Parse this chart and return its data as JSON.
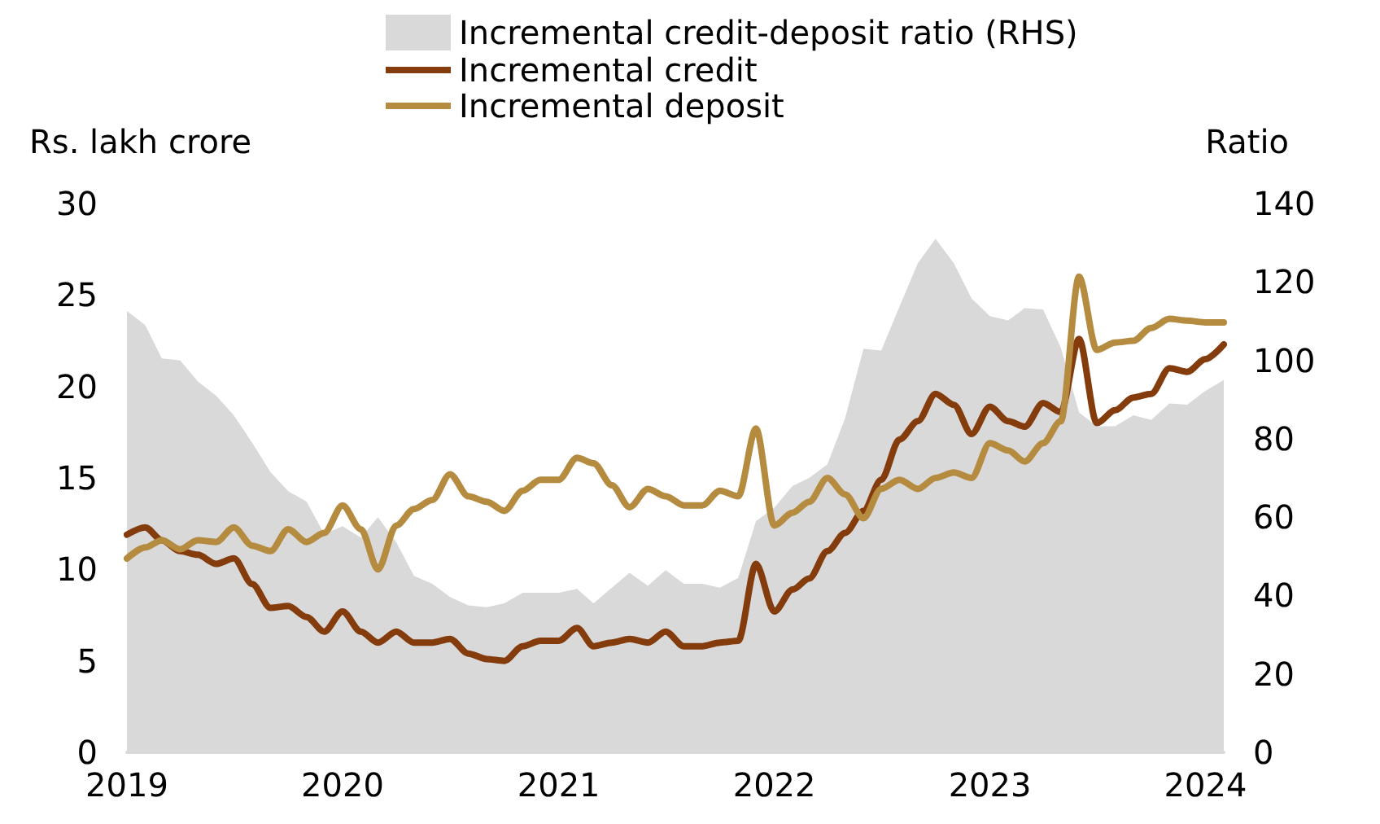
{
  "chart_data": {
    "type": "line",
    "ylabel": "Rs. lakh crore",
    "y2label": "Ratio",
    "x": [
      "2019-01",
      "2019-02",
      "2019-03",
      "2019-04",
      "2019-05",
      "2019-06",
      "2019-07",
      "2019-08",
      "2019-09",
      "2019-10",
      "2019-11",
      "2019-12",
      "2020-01",
      "2020-02",
      "2020-03",
      "2020-04",
      "2020-05",
      "2020-06",
      "2020-07",
      "2020-08",
      "2020-09",
      "2020-10",
      "2020-11",
      "2020-12",
      "2021-01",
      "2021-02",
      "2021-03",
      "2021-04",
      "2021-05",
      "2021-06",
      "2021-07",
      "2021-08",
      "2021-09",
      "2021-10",
      "2021-11",
      "2021-12",
      "2022-01",
      "2022-02",
      "2022-03",
      "2022-04",
      "2022-05",
      "2022-06",
      "2022-07",
      "2022-08",
      "2022-09",
      "2022-10",
      "2022-11",
      "2022-12",
      "2023-01",
      "2023-02",
      "2023-03",
      "2023-04",
      "2023-05",
      "2023-06",
      "2023-07",
      "2023-08",
      "2023-09",
      "2023-10",
      "2023-11",
      "2023-12",
      "2024-01",
      "2024-02"
    ],
    "series": [
      {
        "name": "Incremental credit-deposit ratio (RHS)",
        "type": "area",
        "axis": "y2",
        "color": "#d9d9d9",
        "values": [
          112.6,
          109,
          100.5,
          100,
          94.6,
          91,
          86,
          79,
          71.5,
          66.6,
          64,
          55.7,
          57.7,
          54.8,
          60,
          53.6,
          45,
          43,
          39.6,
          37.5,
          37,
          38,
          40.7,
          40.7,
          40.7,
          41.7,
          38,
          42,
          45.8,
          42.5,
          46.5,
          43,
          43,
          42,
          44.5,
          59,
          62.4,
          68,
          70,
          73.5,
          85.3,
          103,
          102.5,
          113.7,
          124.8,
          131,
          124.8,
          115.8,
          111.3,
          110.2,
          113.3,
          113,
          103.3,
          86.7,
          83.2,
          83.2,
          86,
          84.8,
          89,
          88.7,
          92.2,
          95
        ]
      },
      {
        "name": "Incremental credit",
        "color": "#843c0c",
        "values": [
          11.9,
          12.3,
          11.6,
          11.0,
          10.8,
          10.3,
          10.6,
          9.2,
          7.9,
          8.0,
          7.4,
          6.6,
          7.7,
          6.6,
          6.0,
          6.6,
          6.0,
          6.0,
          6.2,
          5.4,
          5.1,
          5.0,
          5.8,
          6.1,
          6.1,
          6.8,
          5.8,
          6.0,
          6.2,
          6.0,
          6.6,
          5.8,
          5.8,
          6.0,
          6.1,
          10.3,
          7.7,
          8.9,
          9.5,
          11.0,
          12.0,
          13.2,
          14.9,
          17.1,
          18.1,
          19.6,
          19.0,
          17.4,
          18.9,
          18.1,
          17.8,
          19.1,
          18.6,
          22.6,
          18.0,
          18.7,
          19.4,
          19.6,
          21.0,
          20.8,
          21.5,
          22.3
        ]
      },
      {
        "name": "Incremental deposit",
        "color": "#b58b3f",
        "values": [
          10.6,
          11.2,
          11.6,
          11.1,
          11.6,
          11.5,
          12.3,
          11.3,
          11.0,
          12.2,
          11.5,
          12.0,
          13.5,
          12.2,
          10.0,
          12.4,
          13.3,
          13.8,
          15.2,
          14.0,
          13.7,
          13.2,
          14.3,
          14.9,
          14.9,
          16.1,
          15.8,
          14.6,
          13.4,
          14.4,
          14.0,
          13.5,
          13.5,
          14.3,
          14.0,
          17.7,
          12.4,
          13.1,
          13.7,
          15.0,
          14.1,
          12.8,
          14.4,
          14.9,
          14.4,
          15.0,
          15.3,
          15.0,
          16.9,
          16.5,
          15.9,
          16.9,
          18.1,
          26.0,
          22.0,
          22.4,
          22.5,
          23.2,
          23.7,
          23.6,
          23.5,
          23.5
        ]
      }
    ],
    "xlim": [
      "2019-01",
      "2024-02"
    ],
    "xticks": [
      {
        "value": "2019-01",
        "label": "2019"
      },
      {
        "value": "2020-01",
        "label": "2020"
      },
      {
        "value": "2021-01",
        "label": "2021"
      },
      {
        "value": "2022-01",
        "label": "2022"
      },
      {
        "value": "2023-01",
        "label": "2023"
      },
      {
        "value": "2024-01",
        "label": "2024"
      }
    ],
    "ylim": [
      0,
      30
    ],
    "yticks": [
      0,
      5,
      10,
      15,
      20,
      25,
      30
    ],
    "y2lim": [
      0,
      140
    ],
    "y2ticks": [
      0,
      20,
      40,
      60,
      80,
      100,
      120,
      140
    ],
    "grid": false,
    "legend": "top",
    "marker": "none",
    "line_style": "solid"
  }
}
